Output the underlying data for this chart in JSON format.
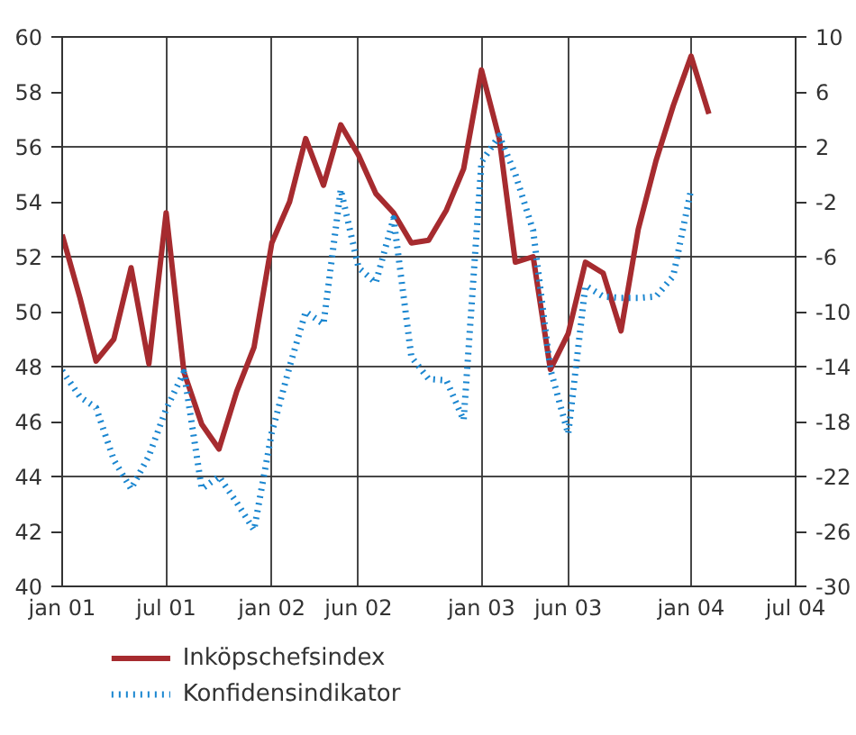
{
  "chart_data": {
    "type": "line",
    "x": [
      "2001-01",
      "2001-02",
      "2001-03",
      "2001-04",
      "2001-05",
      "2001-06",
      "2001-07",
      "2001-08",
      "2001-09",
      "2001-10",
      "2001-11",
      "2001-12",
      "2002-01",
      "2002-02",
      "2002-03",
      "2002-04",
      "2002-05",
      "2002-06",
      "2002-07",
      "2002-08",
      "2002-09",
      "2002-10",
      "2002-11",
      "2002-12",
      "2003-01",
      "2003-02",
      "2003-03",
      "2003-04",
      "2003-05",
      "2003-06",
      "2003-07",
      "2003-08",
      "2003-09",
      "2003-10",
      "2003-11",
      "2003-12",
      "2004-01",
      "2004-02"
    ],
    "series": [
      {
        "name": "Inköpschefsindex",
        "color": "#a62b2f",
        "line_style": "solid",
        "values": [
          52.8,
          50.5,
          48.2,
          49.0,
          51.6,
          48.1,
          53.6,
          47.8,
          45.9,
          45.0,
          47.1,
          48.7,
          52.5,
          54.0,
          56.3,
          54.6,
          56.8,
          55.7,
          54.3,
          53.6,
          52.5,
          52.6,
          53.7,
          55.2,
          58.8,
          56.3,
          51.8,
          52.0,
          47.9,
          49.2,
          51.8,
          51.4,
          49.3,
          53.0,
          55.5,
          57.5,
          59.3,
          57.2
        ]
      },
      {
        "name": "Konfidensindikator",
        "color": "#1a86d0",
        "line_style": "dotted",
        "axis": "y2",
        "values": [
          -14.3,
          -16.2,
          -17.0,
          -20.8,
          -22.9,
          -20.5,
          -17.1,
          -14.4,
          -22.9,
          -22.0,
          -23.9,
          -25.9,
          -18.8,
          -14.0,
          -10.0,
          -10.9,
          -1.1,
          -6.8,
          -7.9,
          -3.2,
          -13.3,
          -14.9,
          -15.0,
          -17.9,
          0.9,
          2.8,
          0.0,
          -4.1,
          -14.2,
          -18.9,
          -8.1,
          -8.9,
          -9.0,
          -9.0,
          -8.9,
          -7.4,
          -1.1,
          null
        ]
      }
    ],
    "xlim": [
      "2001-01",
      "2004-07"
    ],
    "xticks": [
      {
        "value": "2001-01",
        "label": "jan 01"
      },
      {
        "value": "2001-07",
        "label": "jul 01"
      },
      {
        "value": "2002-01",
        "label": "jan 02"
      },
      {
        "value": "2002-06",
        "label": "jun 02"
      },
      {
        "value": "2003-01",
        "label": "jan 03"
      },
      {
        "value": "2003-06",
        "label": "jun 03"
      },
      {
        "value": "2004-01",
        "label": "jan 04"
      },
      {
        "value": "2004-07",
        "label": "jul 04"
      }
    ],
    "ylim": [
      40,
      60
    ],
    "yticks": [
      40,
      42,
      44,
      46,
      48,
      50,
      52,
      54,
      56,
      58,
      60
    ],
    "y2lim": [
      -30,
      10
    ],
    "y2ticks": [
      -30,
      -26,
      -22,
      -18,
      -14,
      -10,
      -6,
      -2,
      2,
      6,
      10
    ],
    "grid": true,
    "legend": "bottom",
    "marker": "none"
  }
}
